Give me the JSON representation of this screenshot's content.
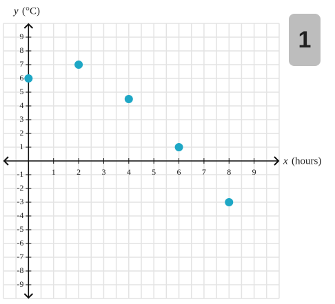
{
  "chart_data": {
    "type": "scatter",
    "x_label_var": "x",
    "x_label_unit": "(hours)",
    "y_label_var": "y",
    "y_label_unit": "(°C)",
    "x": [
      0,
      2,
      4,
      6,
      8
    ],
    "values": [
      6,
      7,
      4.5,
      1,
      -3
    ],
    "color": "#1ea7c5",
    "xlim": [
      -1,
      10
    ],
    "ylim": [
      -10,
      10
    ],
    "xticks": [
      1,
      2,
      3,
      4,
      5,
      6,
      7,
      8,
      9
    ],
    "yticks": [
      -9,
      -8,
      -7,
      -6,
      -5,
      -4,
      -3,
      -2,
      -1,
      1,
      2,
      3,
      4,
      5,
      6,
      7,
      8,
      9
    ],
    "grid": true
  },
  "badge": "1"
}
